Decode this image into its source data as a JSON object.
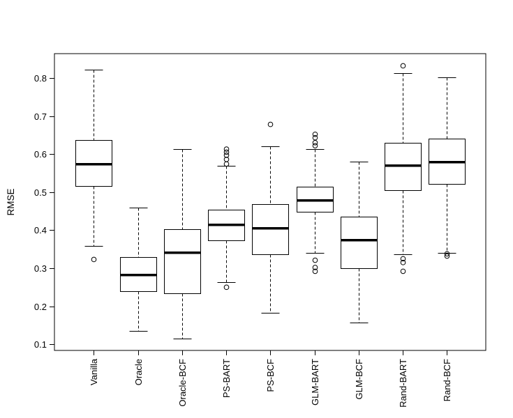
{
  "figure": {
    "background": "#ffffff",
    "stroke_color": "#000000",
    "text_color": "#000000"
  },
  "chart_data": {
    "type": "boxplot",
    "title": "",
    "xlabel": "",
    "ylabel": "RMSE",
    "grid": false,
    "legend": null,
    "ylim": [
      0.084,
      0.864
    ],
    "yticks": [
      0.1,
      0.2,
      0.3,
      0.4,
      0.5,
      0.6,
      0.7,
      0.8
    ],
    "ytick_labels": [
      "0.1",
      "0.2",
      "0.3",
      "0.4",
      "0.5",
      "0.6",
      "0.7",
      "0.8"
    ],
    "categories": [
      "Vanilla",
      "Oracle",
      "Oracle-BCF",
      "PS-BART",
      "PS-BCF",
      "GLM-BART",
      "GLM-BCF",
      "Rand-BART",
      "Rand-BCF"
    ],
    "boxes": [
      {
        "label": "Vanilla",
        "whisker_low": 0.358,
        "q1": 0.516,
        "median": 0.575,
        "q3": 0.637,
        "whisker_high": 0.822,
        "outliers": [
          0.323
        ]
      },
      {
        "label": "Oracle",
        "whisker_low": 0.135,
        "q1": 0.239,
        "median": 0.284,
        "q3": 0.329,
        "whisker_high": 0.459,
        "outliers": []
      },
      {
        "label": "Oracle-BCF",
        "whisker_low": 0.115,
        "q1": 0.234,
        "median": 0.343,
        "q3": 0.402,
        "whisker_high": 0.614,
        "outliers": []
      },
      {
        "label": "PS-BART",
        "whisker_low": 0.263,
        "q1": 0.373,
        "median": 0.415,
        "q3": 0.454,
        "whisker_high": 0.569,
        "outliers": [
          0.613,
          0.605,
          0.597,
          0.586,
          0.574,
          0.25
        ]
      },
      {
        "label": "PS-BCF",
        "whisker_low": 0.182,
        "q1": 0.336,
        "median": 0.406,
        "q3": 0.468,
        "whisker_high": 0.621,
        "outliers": [
          0.678
        ]
      },
      {
        "label": "GLM-BART",
        "whisker_low": 0.341,
        "q1": 0.448,
        "median": 0.48,
        "q3": 0.515,
        "whisker_high": 0.614,
        "outliers": [
          0.652,
          0.643,
          0.63,
          0.622,
          0.321,
          0.302,
          0.292
        ]
      },
      {
        "label": "GLM-BCF",
        "whisker_low": 0.158,
        "q1": 0.3,
        "median": 0.375,
        "q3": 0.436,
        "whisker_high": 0.58,
        "outliers": []
      },
      {
        "label": "Rand-BART",
        "whisker_low": 0.337,
        "q1": 0.505,
        "median": 0.571,
        "q3": 0.629,
        "whisker_high": 0.812,
        "outliers": [
          0.832,
          0.325,
          0.315,
          0.292
        ]
      },
      {
        "label": "Rand-BCF",
        "whisker_low": 0.341,
        "q1": 0.522,
        "median": 0.58,
        "q3": 0.64,
        "whisker_high": 0.801,
        "outliers": [
          0.338,
          0.332
        ]
      }
    ]
  }
}
